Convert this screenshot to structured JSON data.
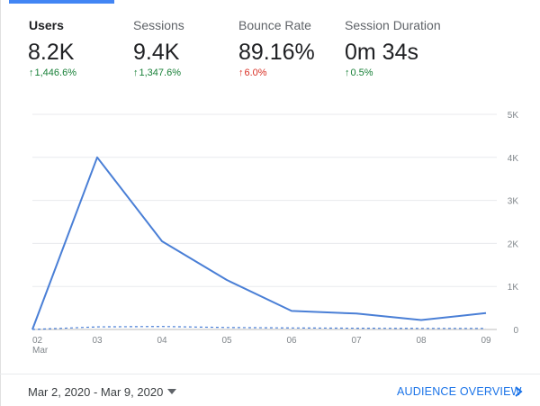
{
  "metrics": [
    {
      "label": "Users",
      "value": "8.2K",
      "delta": "1,446.6%",
      "direction": "up",
      "selected": true
    },
    {
      "label": "Sessions",
      "value": "9.4K",
      "delta": "1,347.6%",
      "direction": "up",
      "selected": false
    },
    {
      "label": "Bounce Rate",
      "value": "89.16%",
      "delta": "6.0%",
      "direction": "up",
      "delta_color": "red",
      "selected": false
    },
    {
      "label": "Session Duration",
      "value": "0m 34s",
      "delta": "0.5%",
      "direction": "up",
      "selected": false
    }
  ],
  "colors": {
    "accent": "#4285f4",
    "positive": "#188038",
    "negative": "#d93025",
    "link": "#1a73e8"
  },
  "chart_data": {
    "type": "line",
    "categories": [
      "02",
      "03",
      "04",
      "05",
      "06",
      "07",
      "08",
      "09"
    ],
    "x_sublabel": "Mar",
    "series": [
      {
        "values": [
          0,
          4000,
          2050,
          1150,
          430,
          370,
          220,
          380
        ],
        "style": "solid"
      },
      {
        "values": [
          0,
          60,
          70,
          45,
          35,
          30,
          25,
          25
        ],
        "style": "dashed"
      }
    ],
    "ylim": [
      0,
      5000
    ],
    "yticks": [
      "0",
      "1K",
      "2K",
      "3K",
      "4K",
      "5K"
    ],
    "ytick_values": [
      0,
      1000,
      2000,
      3000,
      4000,
      5000
    ],
    "y_axis_side": "right",
    "grid": true
  },
  "footer": {
    "date_range": "Mar 2, 2020 - Mar 9, 2020",
    "overview_link": "AUDIENCE OVERVIEW",
    "chevron_icon": "chevron-right-icon",
    "caret_icon": "caret-down-icon"
  }
}
